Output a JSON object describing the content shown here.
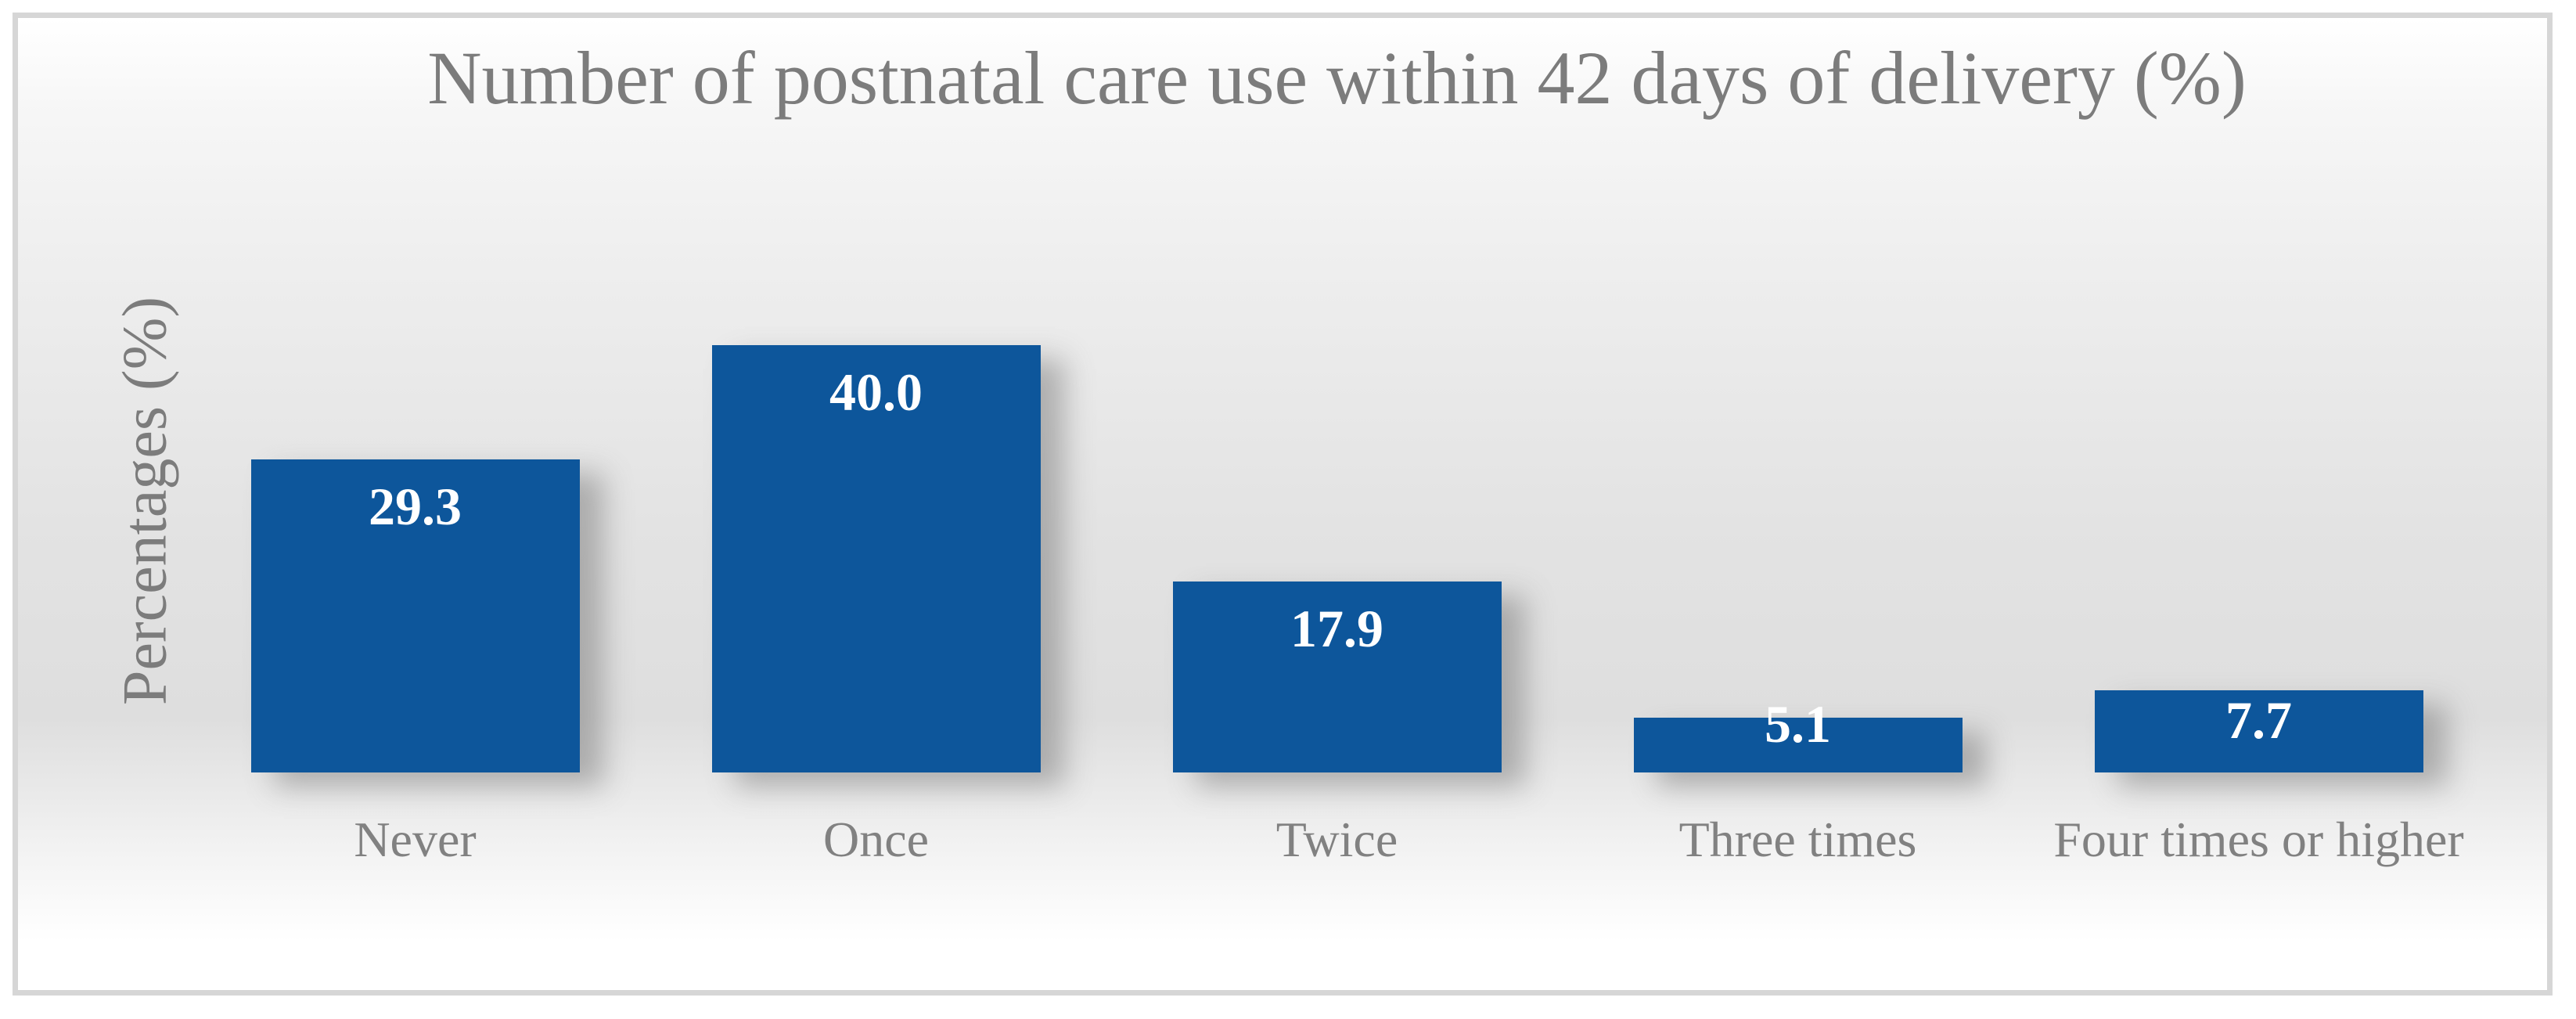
{
  "chart_data": {
    "type": "bar",
    "title": "Number of postnatal care use within 42 days of delivery (%)",
    "xlabel": "",
    "ylabel": "Percentages (%)",
    "categories": [
      "Never",
      "Once",
      "Twice",
      "Three times",
      "Four times or higher"
    ],
    "values": [
      29.3,
      40.0,
      17.9,
      5.1,
      7.7
    ],
    "value_labels": [
      "29.3",
      "40.0",
      "17.9",
      "5.1",
      "7.7"
    ],
    "series_name": "Number of postnatal care use within 42 days of delivery (%)",
    "ylim": [
      0,
      42
    ],
    "grid": false,
    "legend_position": "none",
    "axis_lines": "none",
    "colors": {
      "bar": "#0d569b",
      "value_label": "#ffffff",
      "title_text": "#7c7c7c",
      "axis_text": "#818181",
      "frame_border": "#d6d6d6"
    }
  }
}
